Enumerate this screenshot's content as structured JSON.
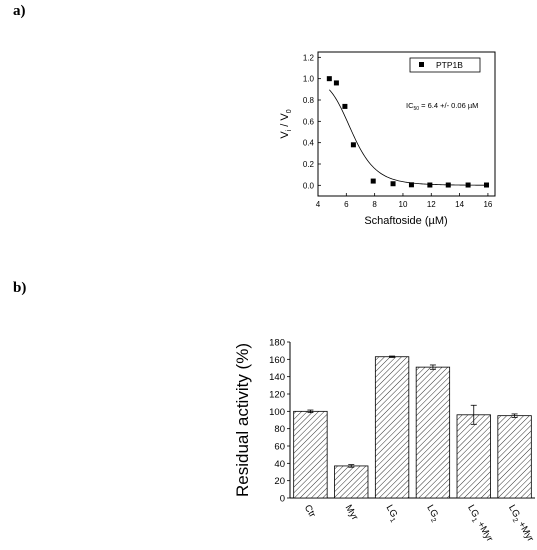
{
  "panels": {
    "a": "a)",
    "b": "b)"
  },
  "chart_data": [
    {
      "type": "scatter",
      "panel": "a",
      "xlabel": "Schaftoside (µM)",
      "ylabel_main": "V",
      "ylabel_sub1": "i",
      "ylabel_sep": " / V",
      "ylabel_sub2": "0",
      "xlim": [
        4,
        16.5
      ],
      "ylim": [
        -0.1,
        1.25
      ],
      "xticks": [
        4,
        6,
        8,
        10,
        12,
        14,
        16
      ],
      "yticks": [
        0.0,
        0.2,
        0.4,
        0.6,
        0.8,
        1.0,
        1.2
      ],
      "ytick_labels": [
        "0.0",
        "0.2",
        "0.4",
        "0.6",
        "0.8",
        "1.0",
        "1.2"
      ],
      "series": [
        {
          "name": "PTP1B",
          "x": [
            4.8,
            5.3,
            5.9,
            6.5,
            7.9,
            9.3,
            10.6,
            11.9,
            13.2,
            14.6,
            15.9
          ],
          "y": [
            1.0,
            0.96,
            0.74,
            0.38,
            0.04,
            0.015,
            0.005,
            0.003,
            0.003,
            0.003,
            0.003
          ]
        }
      ],
      "fit": {
        "ic50": 6.4,
        "hill": 7.5
      },
      "legend_position": "top-right",
      "annotation": {
        "prefix": "IC",
        "sub": "50",
        "suffix": " = 6.4 +/- 0.06 µM"
      }
    },
    {
      "type": "bar",
      "panel": "b",
      "ylabel": "Residual activity (%)",
      "ylim": [
        0,
        180
      ],
      "yticks": [
        0,
        20,
        40,
        60,
        80,
        100,
        120,
        140,
        160,
        180
      ],
      "categories": [
        {
          "main": "Ctr",
          "sub": "",
          "suffix": ""
        },
        {
          "main": "Myr",
          "sub": "",
          "suffix": ""
        },
        {
          "main": "LG",
          "sub": "1",
          "suffix": ""
        },
        {
          "main": "LG",
          "sub": "2",
          "suffix": ""
        },
        {
          "main": "LG",
          "sub": "1",
          "suffix": " +Myr"
        },
        {
          "main": "LG",
          "sub": "2",
          "suffix": " +Myr"
        }
      ],
      "values": [
        100,
        37,
        163,
        151,
        96,
        95
      ],
      "errors": [
        1.5,
        1.5,
        0.8,
        2.5,
        11,
        2.0
      ],
      "bar_fill": "hatched"
    }
  ]
}
